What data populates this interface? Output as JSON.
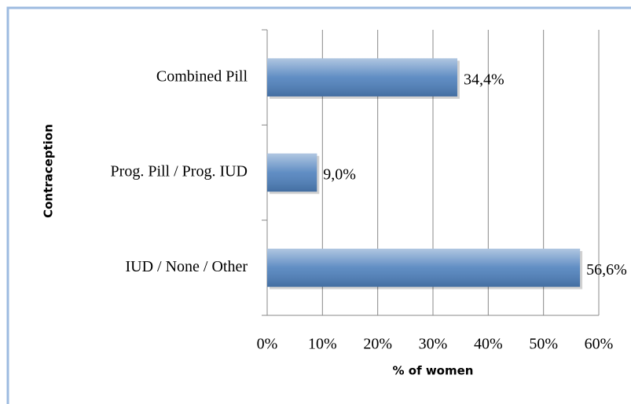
{
  "chart_data": {
    "type": "hbar",
    "categories": [
      "Combined Pill",
      "Prog. Pill / Prog. IUD",
      "IUD / None / Other"
    ],
    "values": [
      34.4,
      9.0,
      56.6
    ],
    "value_labels": [
      "34,4%",
      "9,0%",
      "56,6%"
    ],
    "color": "#4f81bd",
    "xlim": [
      0,
      60
    ],
    "xticks": [
      {
        "value": 0,
        "label": "0%"
      },
      {
        "value": 10,
        "label": "10%"
      },
      {
        "value": 20,
        "label": "20%"
      },
      {
        "value": 30,
        "label": "30%"
      },
      {
        "value": 40,
        "label": "40%"
      },
      {
        "value": 50,
        "label": "50%"
      },
      {
        "value": 60,
        "label": "60%"
      }
    ],
    "xlabel": "% of women",
    "ylabel": "Contraception",
    "grid": true
  }
}
